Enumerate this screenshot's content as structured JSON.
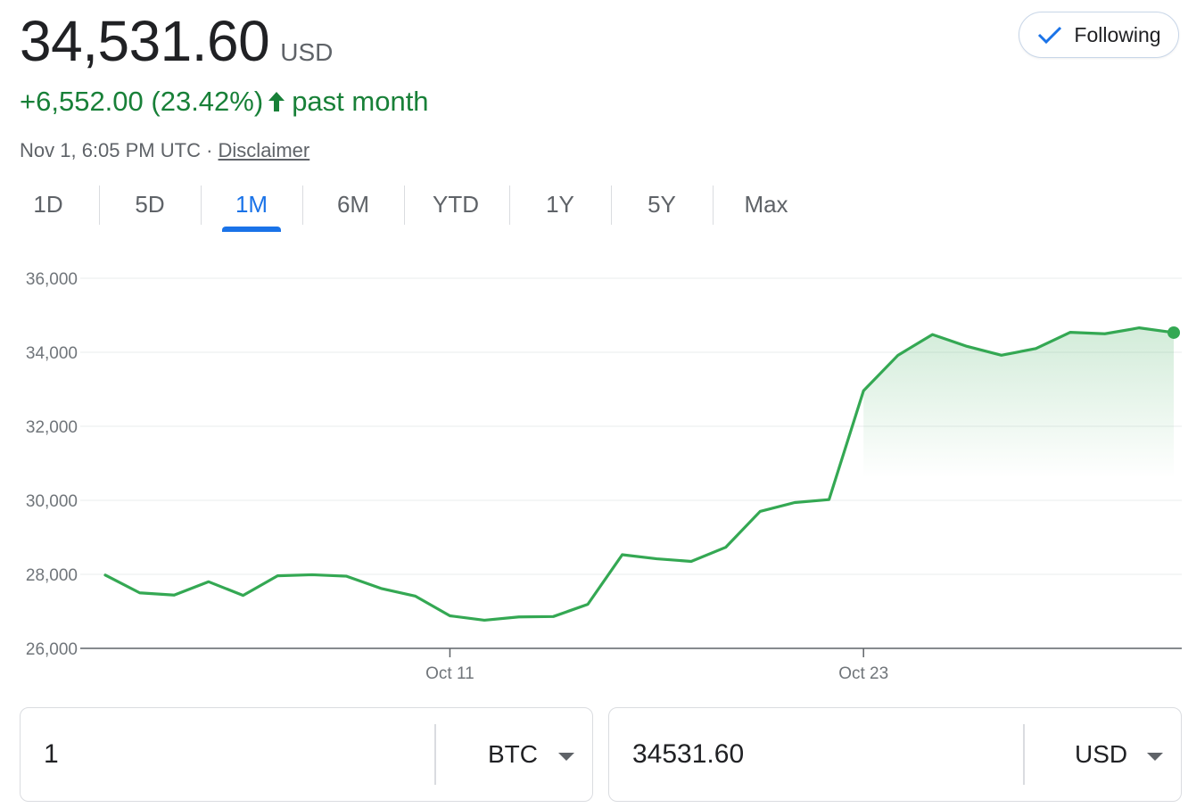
{
  "quote": {
    "price": "34,531.60",
    "currency": "USD",
    "change": "+6,552.00 (23.42%)",
    "period": "past month",
    "timestamp": "Nov 1, 6:05 PM UTC",
    "separator": "·",
    "disclaimer": "Disclaimer",
    "follow_label": "Following",
    "accent_color": "#188038"
  },
  "tabs": [
    {
      "label": "1D"
    },
    {
      "label": "5D"
    },
    {
      "label": "1M",
      "active": true
    },
    {
      "label": "6M"
    },
    {
      "label": "YTD"
    },
    {
      "label": "1Y"
    },
    {
      "label": "5Y"
    },
    {
      "label": "Max"
    }
  ],
  "chart_data": {
    "type": "area",
    "ylim": [
      26000,
      36000
    ],
    "yticks": [
      26000,
      28000,
      30000,
      32000,
      34000,
      36000
    ],
    "ytick_labels": [
      "26,000",
      "28,000",
      "30,000",
      "32,000",
      "34,000",
      "36,000"
    ],
    "xtick_labels": [
      {
        "label": "Oct 11",
        "index": 10
      },
      {
        "label": "Oct 23",
        "index": 22
      }
    ],
    "line_color": "#34a853",
    "values": [
      27980,
      27500,
      27440,
      27800,
      27430,
      27960,
      27990,
      27950,
      27620,
      27410,
      26880,
      26760,
      26850,
      26860,
      27190,
      28530,
      28420,
      28350,
      28730,
      29700,
      29940,
      30020,
      32960,
      33920,
      34480,
      34160,
      33920,
      34100,
      34540,
      34500,
      34660,
      34531.6
    ]
  },
  "converter": {
    "from_value": "1",
    "from_unit": "BTC",
    "to_value": "34531.60",
    "to_unit": "USD"
  }
}
